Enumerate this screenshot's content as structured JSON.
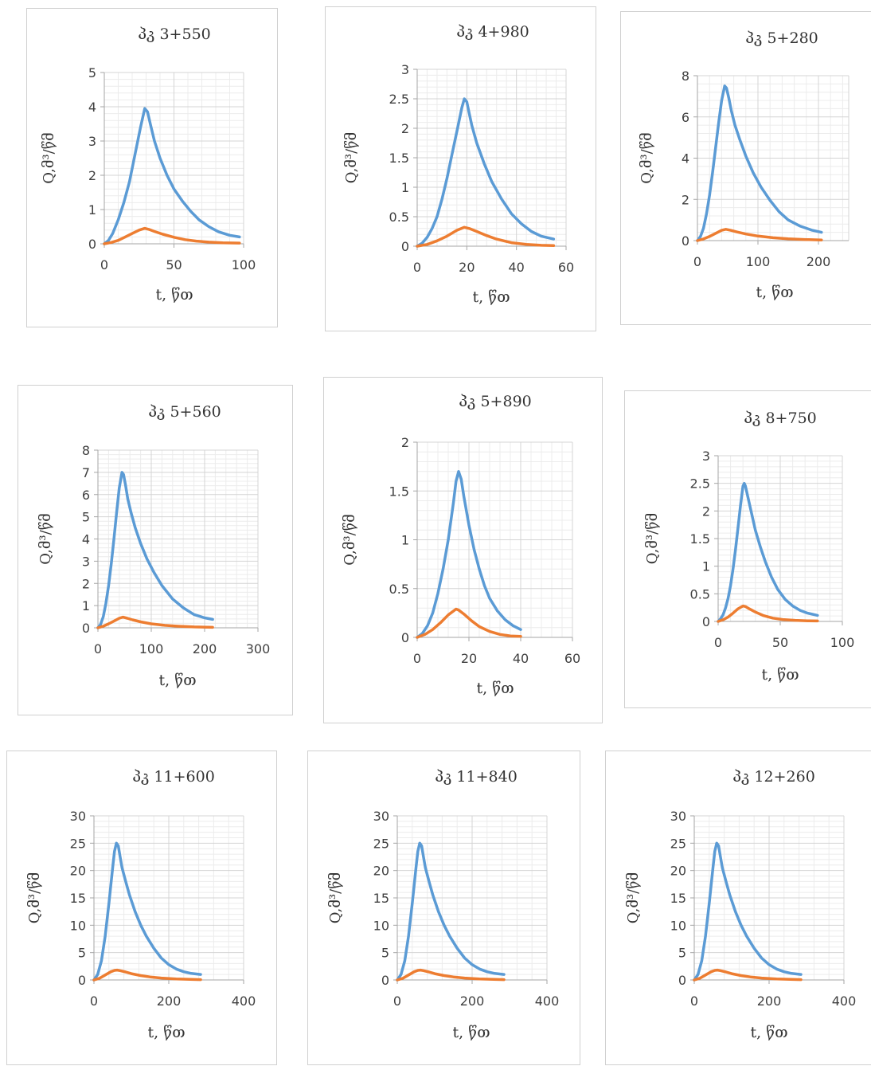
{
  "colors": {
    "series_a": "#5b9bd5",
    "series_b": "#ed7d31"
  },
  "chart_data": [
    {
      "type": "line",
      "title": "პკ 3+550",
      "xlabel": "t, წთ",
      "ylabel": "Q,მ³/წმ",
      "xlim": [
        0,
        100
      ],
      "ylim": [
        0,
        5
      ],
      "xticks": [
        0,
        50,
        100
      ],
      "yticks": [
        0,
        1,
        2,
        3,
        4,
        5
      ],
      "xticklabels": [
        "0",
        "50",
        "100"
      ],
      "yticklabels": [
        "0",
        "1",
        "2",
        "3",
        "4",
        "5"
      ],
      "grid": true,
      "series": [
        {
          "x": [
            0,
            3,
            6,
            10,
            14,
            18,
            22,
            26,
            29,
            31,
            33,
            36,
            40,
            45,
            50,
            56,
            62,
            68,
            75,
            82,
            90,
            97
          ],
          "y": [
            0,
            0.1,
            0.3,
            0.7,
            1.2,
            1.8,
            2.6,
            3.4,
            3.95,
            3.85,
            3.5,
            3.0,
            2.5,
            2.0,
            1.6,
            1.25,
            0.95,
            0.7,
            0.5,
            0.35,
            0.25,
            0.2
          ]
        },
        {
          "x": [
            0,
            5,
            10,
            15,
            20,
            25,
            29,
            32,
            36,
            42,
            50,
            58,
            66,
            75,
            85,
            97
          ],
          "y": [
            0,
            0.04,
            0.1,
            0.2,
            0.3,
            0.4,
            0.45,
            0.42,
            0.36,
            0.28,
            0.19,
            0.12,
            0.08,
            0.05,
            0.03,
            0.02
          ]
        }
      ]
    },
    {
      "type": "line",
      "title": "პკ 4+980",
      "xlabel": "t, წთ",
      "ylabel": "Q,მ³/წმ",
      "xlim": [
        0,
        60
      ],
      "ylim": [
        0,
        3
      ],
      "xticks": [
        0,
        20,
        40,
        60
      ],
      "yticks": [
        0,
        0.5,
        1,
        1.5,
        2,
        2.5,
        3
      ],
      "xticklabels": [
        "0",
        "20",
        "40",
        "60"
      ],
      "yticklabels": [
        "0",
        "0.5",
        "1",
        "1.5",
        "2",
        "2.5",
        "3"
      ],
      "grid": true,
      "series": [
        {
          "x": [
            0,
            2,
            4,
            6,
            8,
            10,
            12,
            14,
            16,
            18,
            19,
            20,
            21,
            22,
            24,
            27,
            30,
            34,
            38,
            42,
            46,
            50,
            55
          ],
          "y": [
            0,
            0.05,
            0.15,
            0.3,
            0.5,
            0.8,
            1.15,
            1.55,
            1.95,
            2.35,
            2.5,
            2.45,
            2.25,
            2.05,
            1.75,
            1.4,
            1.1,
            0.8,
            0.55,
            0.38,
            0.25,
            0.17,
            0.12
          ]
        },
        {
          "x": [
            0,
            4,
            8,
            12,
            16,
            19,
            21,
            24,
            28,
            32,
            38,
            44,
            50,
            55
          ],
          "y": [
            0,
            0.03,
            0.09,
            0.17,
            0.27,
            0.32,
            0.3,
            0.25,
            0.18,
            0.12,
            0.06,
            0.03,
            0.015,
            0.01
          ]
        }
      ]
    },
    {
      "type": "line",
      "title": "პკ 5+280",
      "xlabel": "t, წთ",
      "ylabel": "Q,მ³/წმ",
      "xlim": [
        0,
        250
      ],
      "ylim": [
        0,
        8
      ],
      "xticks": [
        0,
        100,
        200
      ],
      "yticks": [
        0,
        2,
        4,
        6,
        8
      ],
      "xticklabels": [
        "0",
        "100",
        "200"
      ],
      "yticklabels": [
        "0",
        "2",
        "4",
        "6",
        "8"
      ],
      "grid": true,
      "series": [
        {
          "x": [
            0,
            5,
            10,
            15,
            20,
            25,
            30,
            35,
            40,
            45,
            48,
            52,
            56,
            62,
            70,
            80,
            92,
            105,
            120,
            135,
            150,
            170,
            190,
            205
          ],
          "y": [
            0,
            0.2,
            0.6,
            1.3,
            2.2,
            3.3,
            4.5,
            5.7,
            6.8,
            7.5,
            7.4,
            6.9,
            6.3,
            5.6,
            4.9,
            4.1,
            3.3,
            2.6,
            1.95,
            1.4,
            1.0,
            0.7,
            0.5,
            0.4
          ]
        },
        {
          "x": [
            0,
            10,
            20,
            30,
            40,
            47,
            55,
            65,
            80,
            100,
            125,
            150,
            180,
            205
          ],
          "y": [
            0,
            0.08,
            0.2,
            0.35,
            0.5,
            0.55,
            0.5,
            0.42,
            0.32,
            0.22,
            0.14,
            0.09,
            0.05,
            0.03
          ]
        }
      ]
    },
    {
      "type": "line",
      "title": "პკ 5+560",
      "xlabel": "t, წთ",
      "ylabel": "Q,მ³/წმ",
      "xlim": [
        0,
        300
      ],
      "ylim": [
        0,
        8
      ],
      "xticks": [
        0,
        100,
        200,
        300
      ],
      "yticks": [
        0,
        1,
        2,
        3,
        4,
        5,
        6,
        7,
        8
      ],
      "xticklabels": [
        "0",
        "100",
        "200",
        "300"
      ],
      "yticklabels": [
        "0",
        "1",
        "2",
        "3",
        "4",
        "5",
        "6",
        "7",
        "8"
      ],
      "grid": true,
      "series": [
        {
          "x": [
            0,
            5,
            10,
            15,
            20,
            25,
            30,
            35,
            40,
            45,
            48,
            52,
            56,
            62,
            70,
            80,
            92,
            105,
            120,
            140,
            160,
            180,
            200,
            215
          ],
          "y": [
            0,
            0.15,
            0.5,
            1.1,
            1.9,
            2.9,
            4.0,
            5.2,
            6.3,
            7.0,
            6.9,
            6.4,
            5.8,
            5.2,
            4.5,
            3.8,
            3.1,
            2.5,
            1.9,
            1.3,
            0.9,
            0.6,
            0.45,
            0.38
          ]
        },
        {
          "x": [
            0,
            10,
            20,
            30,
            40,
            47,
            55,
            65,
            80,
            100,
            125,
            150,
            180,
            215
          ],
          "y": [
            0,
            0.07,
            0.18,
            0.3,
            0.43,
            0.48,
            0.43,
            0.36,
            0.27,
            0.18,
            0.11,
            0.07,
            0.04,
            0.02
          ]
        }
      ]
    },
    {
      "type": "line",
      "title": "პკ 5+890",
      "xlabel": "t, წთ",
      "ylabel": "Q,მ³/წმ",
      "xlim": [
        0,
        60
      ],
      "ylim": [
        0,
        2
      ],
      "xticks": [
        0,
        20,
        40,
        60
      ],
      "yticks": [
        0,
        0.5,
        1,
        1.5,
        2
      ],
      "xticklabels": [
        "0",
        "20",
        "40",
        "60"
      ],
      "yticklabels": [
        "0",
        "0.5",
        "1",
        "1.5",
        "2"
      ],
      "grid": true,
      "series": [
        {
          "x": [
            0,
            2,
            4,
            6,
            8,
            10,
            12,
            14,
            15,
            16,
            17,
            18,
            20,
            22,
            24,
            26,
            28,
            31,
            34,
            37,
            40
          ],
          "y": [
            0,
            0.04,
            0.12,
            0.25,
            0.45,
            0.7,
            1.0,
            1.38,
            1.6,
            1.7,
            1.62,
            1.45,
            1.15,
            0.9,
            0.7,
            0.53,
            0.4,
            0.27,
            0.18,
            0.12,
            0.08
          ]
        },
        {
          "x": [
            0,
            3,
            6,
            9,
            12,
            15,
            16,
            18,
            21,
            24,
            28,
            32,
            36,
            40
          ],
          "y": [
            0,
            0.03,
            0.08,
            0.15,
            0.23,
            0.29,
            0.28,
            0.24,
            0.17,
            0.11,
            0.06,
            0.03,
            0.015,
            0.01
          ]
        }
      ]
    },
    {
      "type": "line",
      "title": "პკ 8+750",
      "xlabel": "t, წთ",
      "ylabel": "Q,მ³/წმ",
      "xlim": [
        0,
        100
      ],
      "ylim": [
        0,
        3
      ],
      "xticks": [
        0,
        50,
        100
      ],
      "yticks": [
        0,
        0.5,
        1,
        1.5,
        2,
        2.5,
        3
      ],
      "xticklabels": [
        "0",
        "50",
        "100"
      ],
      "yticklabels": [
        "0",
        "0.5",
        "1",
        "1.5",
        "2",
        "2.5",
        "3"
      ],
      "grid": true,
      "series": [
        {
          "x": [
            0,
            2,
            4,
            6,
            8,
            10,
            12,
            14,
            16,
            18,
            20,
            21,
            22,
            24,
            27,
            30,
            34,
            38,
            43,
            48,
            54,
            60,
            66,
            72,
            80
          ],
          "y": [
            0,
            0.05,
            0.12,
            0.25,
            0.42,
            0.65,
            0.95,
            1.3,
            1.7,
            2.1,
            2.45,
            2.5,
            2.45,
            2.25,
            1.95,
            1.65,
            1.35,
            1.08,
            0.8,
            0.58,
            0.4,
            0.28,
            0.2,
            0.15,
            0.11
          ]
        },
        {
          "x": [
            0,
            4,
            8,
            12,
            16,
            20,
            22,
            25,
            30,
            36,
            44,
            52,
            62,
            72,
            80
          ],
          "y": [
            0,
            0.03,
            0.08,
            0.15,
            0.23,
            0.28,
            0.27,
            0.23,
            0.17,
            0.11,
            0.06,
            0.035,
            0.02,
            0.012,
            0.008
          ]
        }
      ]
    },
    {
      "type": "line",
      "title": "პკ 11+600",
      "xlabel": "t, წთ",
      "ylabel": "Q,მ³/წმ",
      "xlim": [
        0,
        400
      ],
      "ylim": [
        0,
        30
      ],
      "xticks": [
        0,
        200,
        400
      ],
      "yticks": [
        0,
        5,
        10,
        15,
        20,
        25,
        30
      ],
      "xticklabels": [
        "0",
        "200",
        "400"
      ],
      "yticklabels": [
        "0",
        "5",
        "10",
        "15",
        "20",
        "25",
        "30"
      ],
      "grid": true,
      "series": [
        {
          "x": [
            0,
            10,
            20,
            30,
            40,
            50,
            55,
            60,
            65,
            70,
            75,
            85,
            95,
            110,
            125,
            140,
            160,
            180,
            200,
            220,
            240,
            260,
            285
          ],
          "y": [
            0,
            1.0,
            3.5,
            8.0,
            14.0,
            20.5,
            23.5,
            25.0,
            24.5,
            22.5,
            20.5,
            18.0,
            15.5,
            12.5,
            10.0,
            8.0,
            5.8,
            4.0,
            2.8,
            2.0,
            1.5,
            1.2,
            1.0
          ]
        },
        {
          "x": [
            0,
            15,
            30,
            45,
            55,
            62,
            70,
            85,
            100,
            125,
            150,
            180,
            220,
            285
          ],
          "y": [
            0,
            0.3,
            0.9,
            1.5,
            1.75,
            1.8,
            1.7,
            1.45,
            1.15,
            0.8,
            0.55,
            0.35,
            0.18,
            0.06
          ]
        }
      ]
    },
    {
      "type": "line",
      "title": "პკ 11+840",
      "xlabel": "t, წთ",
      "ylabel": "Q,მ³/წმ",
      "xlim": [
        0,
        400
      ],
      "ylim": [
        0,
        30
      ],
      "xticks": [
        0,
        200,
        400
      ],
      "yticks": [
        0,
        5,
        10,
        15,
        20,
        25,
        30
      ],
      "xticklabels": [
        "0",
        "200",
        "400"
      ],
      "yticklabels": [
        "0",
        "5",
        "10",
        "15",
        "20",
        "25",
        "30"
      ],
      "grid": true,
      "series": [
        {
          "x": [
            0,
            10,
            20,
            30,
            40,
            50,
            55,
            60,
            65,
            70,
            75,
            85,
            95,
            110,
            125,
            140,
            160,
            180,
            200,
            220,
            240,
            260,
            285
          ],
          "y": [
            0,
            1.0,
            3.5,
            8.0,
            14.0,
            20.5,
            23.5,
            25.0,
            24.5,
            22.5,
            20.5,
            18.0,
            15.5,
            12.5,
            10.0,
            8.0,
            5.8,
            4.0,
            2.8,
            2.0,
            1.5,
            1.2,
            1.0
          ]
        },
        {
          "x": [
            0,
            15,
            30,
            45,
            55,
            62,
            70,
            85,
            100,
            125,
            150,
            180,
            220,
            285
          ],
          "y": [
            0,
            0.3,
            0.9,
            1.5,
            1.75,
            1.8,
            1.7,
            1.45,
            1.15,
            0.8,
            0.55,
            0.35,
            0.18,
            0.06
          ]
        }
      ]
    },
    {
      "type": "line",
      "title": "პკ 12+260",
      "xlabel": "t, წთ",
      "ylabel": "Q,მ³/წმ",
      "xlim": [
        0,
        400
      ],
      "ylim": [
        0,
        30
      ],
      "xticks": [
        0,
        200,
        400
      ],
      "yticks": [
        0,
        5,
        10,
        15,
        20,
        25,
        30
      ],
      "xticklabels": [
        "0",
        "200",
        "400"
      ],
      "yticklabels": [
        "0",
        "5",
        "10",
        "15",
        "20",
        "25",
        "30"
      ],
      "grid": true,
      "series": [
        {
          "x": [
            0,
            10,
            20,
            30,
            40,
            50,
            55,
            60,
            65,
            70,
            75,
            85,
            95,
            110,
            125,
            140,
            160,
            180,
            200,
            220,
            240,
            260,
            285
          ],
          "y": [
            0,
            1.0,
            3.5,
            8.0,
            14.0,
            20.5,
            23.5,
            25.0,
            24.5,
            22.5,
            20.5,
            18.0,
            15.5,
            12.5,
            10.0,
            8.0,
            5.8,
            4.0,
            2.8,
            2.0,
            1.5,
            1.2,
            1.0
          ]
        },
        {
          "x": [
            0,
            15,
            30,
            45,
            55,
            62,
            70,
            85,
            100,
            125,
            150,
            180,
            220,
            285
          ],
          "y": [
            0,
            0.3,
            0.9,
            1.5,
            1.75,
            1.8,
            1.7,
            1.45,
            1.15,
            0.8,
            0.55,
            0.35,
            0.18,
            0.06
          ]
        }
      ]
    }
  ]
}
